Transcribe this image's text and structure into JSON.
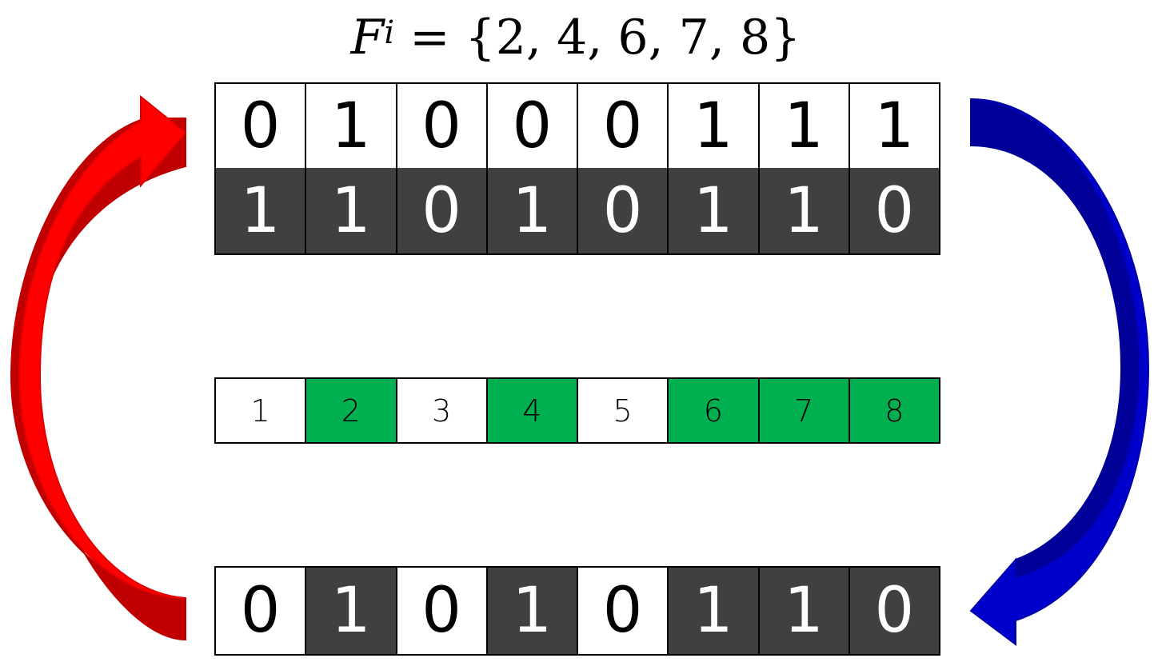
{
  "formula": {
    "symbol": "F",
    "superscript": "i",
    "rhs": "= {2,  4,  6,  7,  8}"
  },
  "rows": {
    "top": [
      "0",
      "1",
      "0",
      "0",
      "0",
      "1",
      "1",
      "1"
    ],
    "middle": [
      "1",
      "1",
      "0",
      "1",
      "0",
      "1",
      "1",
      "0"
    ],
    "index": [
      "1",
      "2",
      "3",
      "4",
      "5",
      "6",
      "7",
      "8"
    ],
    "bottom": [
      "0",
      "1",
      "0",
      "1",
      "0",
      "1",
      "1",
      "0"
    ]
  },
  "row_styles": {
    "top": [
      "light",
      "light",
      "light",
      "light",
      "light",
      "light",
      "light",
      "light"
    ],
    "middle": [
      "dark",
      "dark",
      "dark",
      "dark",
      "dark",
      "dark",
      "dark",
      "dark"
    ],
    "index": [
      "light",
      "green",
      "light",
      "green",
      "light",
      "green",
      "green",
      "green"
    ],
    "bottom": [
      "light",
      "dark",
      "light",
      "dark",
      "light",
      "dark",
      "dark",
      "dark"
    ]
  },
  "colors": {
    "dark_cell": "#404040",
    "light_cell": "#ffffff",
    "selected_cell": "#00b050",
    "red_arrow": "#ff0000",
    "red_arrow_shade": "#c00000",
    "blue_arrow": "#0000cc",
    "blue_arrow_shade": "#000099"
  }
}
